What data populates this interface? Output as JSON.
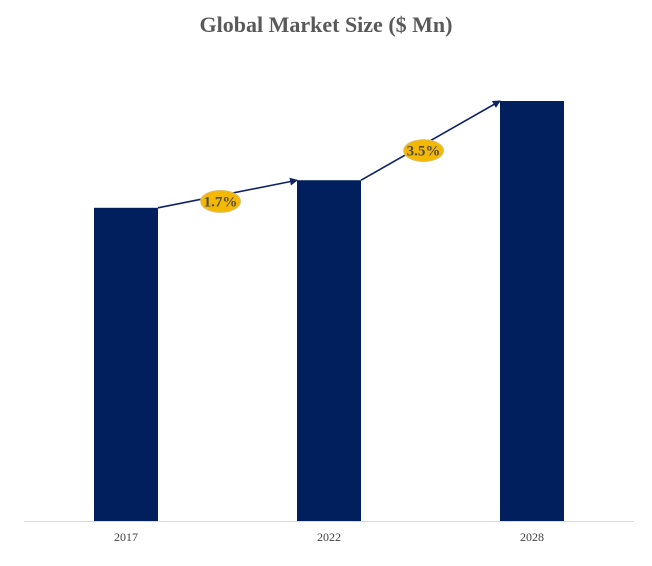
{
  "chart_data": {
    "type": "bar",
    "title": "Global Market Size ($ Mn)",
    "categories": [
      "2017",
      "2022",
      "2028"
    ],
    "values": [
      1.0,
      1.088,
      1.341
    ],
    "ylim": [
      0,
      1.341
    ],
    "grid": false,
    "xlabel": "",
    "ylabel": "",
    "annotations": [
      {
        "from": "2017",
        "to": "2022",
        "label": "1.7%"
      },
      {
        "from": "2022",
        "to": "2028",
        "label": "3.5%"
      }
    ],
    "colors": {
      "bar": "#001f5c",
      "arrow": "#0d2366",
      "badge": "#f5b800",
      "badge_text": "#4d4d4d",
      "title": "#595959",
      "axis": "#d9d9d9"
    }
  }
}
